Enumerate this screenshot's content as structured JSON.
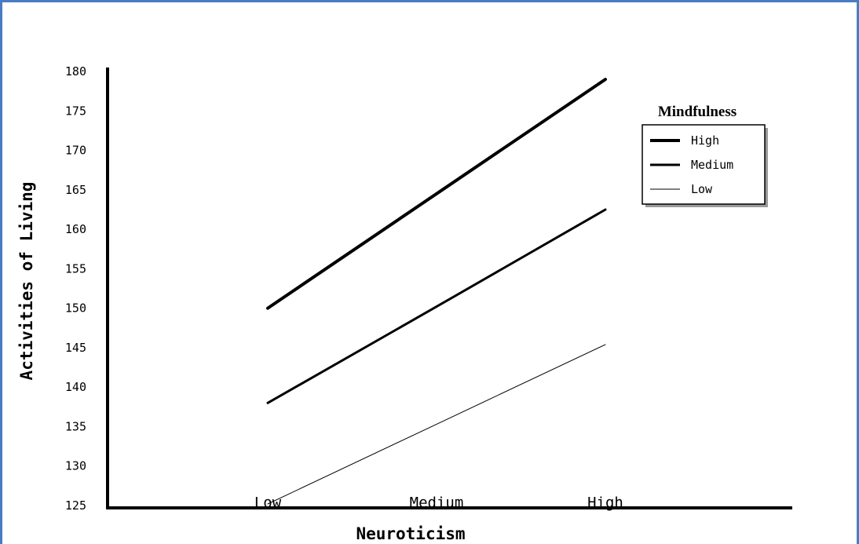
{
  "chart_data": {
    "type": "line",
    "title": "",
    "xlabel": "Neuroticism",
    "ylabel": "Activities of Living",
    "categories": [
      "Low",
      "Medium",
      "High"
    ],
    "ylim": [
      125,
      180
    ],
    "yticks": [
      125,
      130,
      135,
      140,
      145,
      150,
      155,
      160,
      165,
      170,
      175,
      180
    ],
    "grid": false,
    "legend": {
      "title": "Mindfulness",
      "placement": "top-right"
    },
    "series": [
      {
        "name": "High",
        "values": [
          150,
          164.5,
          179
        ],
        "stroke_width": 4
      },
      {
        "name": "Medium",
        "values": [
          138,
          150.2,
          162.5
        ],
        "stroke_width": 3
      },
      {
        "name": "Low",
        "values": [
          125.2,
          135.3,
          145.4
        ],
        "stroke_width": 1
      }
    ]
  }
}
